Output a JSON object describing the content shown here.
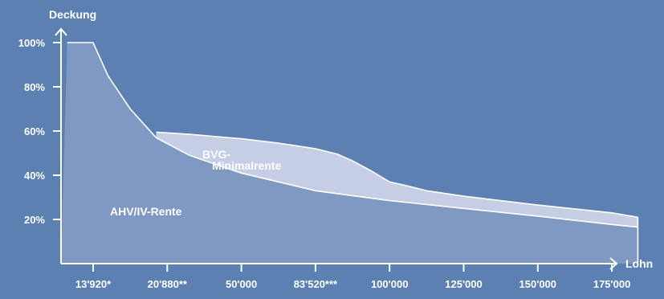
{
  "chart_data": {
    "type": "area",
    "title": "",
    "ylabel": "Deckung",
    "xlabel": "Lohn",
    "y_ticks": [
      "20%",
      "40%",
      "60%",
      "80%",
      "100%"
    ],
    "y_tick_values": [
      20,
      40,
      60,
      80,
      100
    ],
    "x_ticks": [
      "13'920*",
      "20'880**",
      "50'000",
      "83'520***",
      "100'000",
      "125'000",
      "150'000",
      "175'000"
    ],
    "x_tick_positions": [
      0,
      1,
      2,
      3,
      4,
      5,
      6,
      7
    ],
    "ylim": [
      0,
      105
    ],
    "xlim": [
      -0.35,
      7.35
    ],
    "grid": false,
    "series": [
      {
        "name": "AHV/IV-Rente",
        "label_lines": [
          "AHV/IV-Rente"
        ],
        "points": [
          [
            -0.35,
            100
          ],
          [
            0,
            100
          ],
          [
            0.2,
            85
          ],
          [
            0.5,
            70
          ],
          [
            0.85,
            57
          ],
          [
            1.3,
            49
          ],
          [
            2,
            41
          ],
          [
            2.5,
            37
          ],
          [
            3,
            33
          ],
          [
            4,
            28.5
          ],
          [
            5,
            25
          ],
          [
            6,
            21.5
          ],
          [
            7,
            17.7
          ],
          [
            7.35,
            16.5
          ]
        ]
      },
      {
        "name": "BVG-Minimalrente",
        "label_lines": [
          "BVG-",
          "Minimalrente"
        ],
        "points": [
          [
            0.85,
            59.5
          ],
          [
            1.3,
            58.5
          ],
          [
            2,
            56.5
          ],
          [
            2.5,
            54.5
          ],
          [
            3,
            52
          ],
          [
            3.3,
            49.5
          ],
          [
            3.5,
            46.5
          ],
          [
            3.75,
            42
          ],
          [
            4,
            37
          ],
          [
            4.2,
            35.5
          ],
          [
            4.5,
            33
          ],
          [
            5,
            30.5
          ],
          [
            6,
            26.5
          ],
          [
            7,
            23
          ],
          [
            7.35,
            21
          ]
        ]
      }
    ],
    "colors": {
      "background": "#5b80b1",
      "ahv_area": "#7f99c2",
      "bvg_area": "#c5cee5",
      "lines": "#ffffff"
    }
  }
}
